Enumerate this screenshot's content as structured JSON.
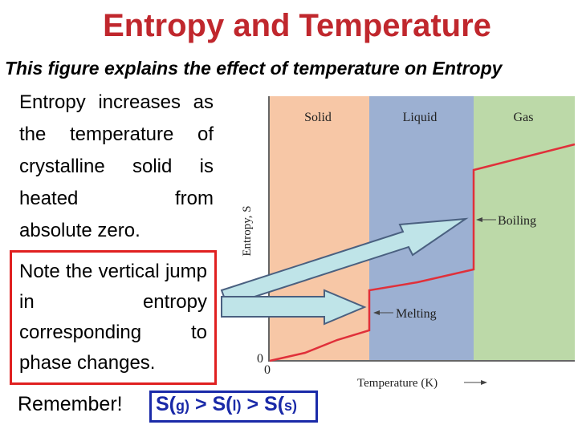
{
  "title": "Entropy and Temperature",
  "subtitle": "This figure explains the effect of temperature on Entropy",
  "paragraph1": {
    "lines": [
      "Entropy increases",
      "as the temperature",
      "of crystalline solid",
      "is heated from",
      "absolute zero."
    ]
  },
  "paragraph2": {
    "lines": [
      "Note the vertical",
      "jump in entropy",
      "corresponding to",
      "phase changes."
    ]
  },
  "remember": "Remember!",
  "inequality": {
    "s1": "S(",
    "g": "g",
    "c1": ")",
    "gt1": " > ",
    "s2": "S(",
    "l": "l",
    "c2": ")",
    "gt2": " > ",
    "s3": "S(",
    "s": "s",
    "c3": ")"
  },
  "figure": {
    "regions": [
      {
        "label": "Solid",
        "color": "#f7c7a6"
      },
      {
        "label": "Liquid",
        "color": "#9cb0d2"
      },
      {
        "label": "Gas",
        "color": "#bcd9a8"
      }
    ],
    "y_axis_label": "Entropy, S",
    "x_axis_label": "Temperature (K)",
    "y_origin": "0",
    "x_origin": "0",
    "annotations": {
      "boiling": "Boiling",
      "melting": "Melting"
    },
    "curve_color": "#e0303a"
  }
}
